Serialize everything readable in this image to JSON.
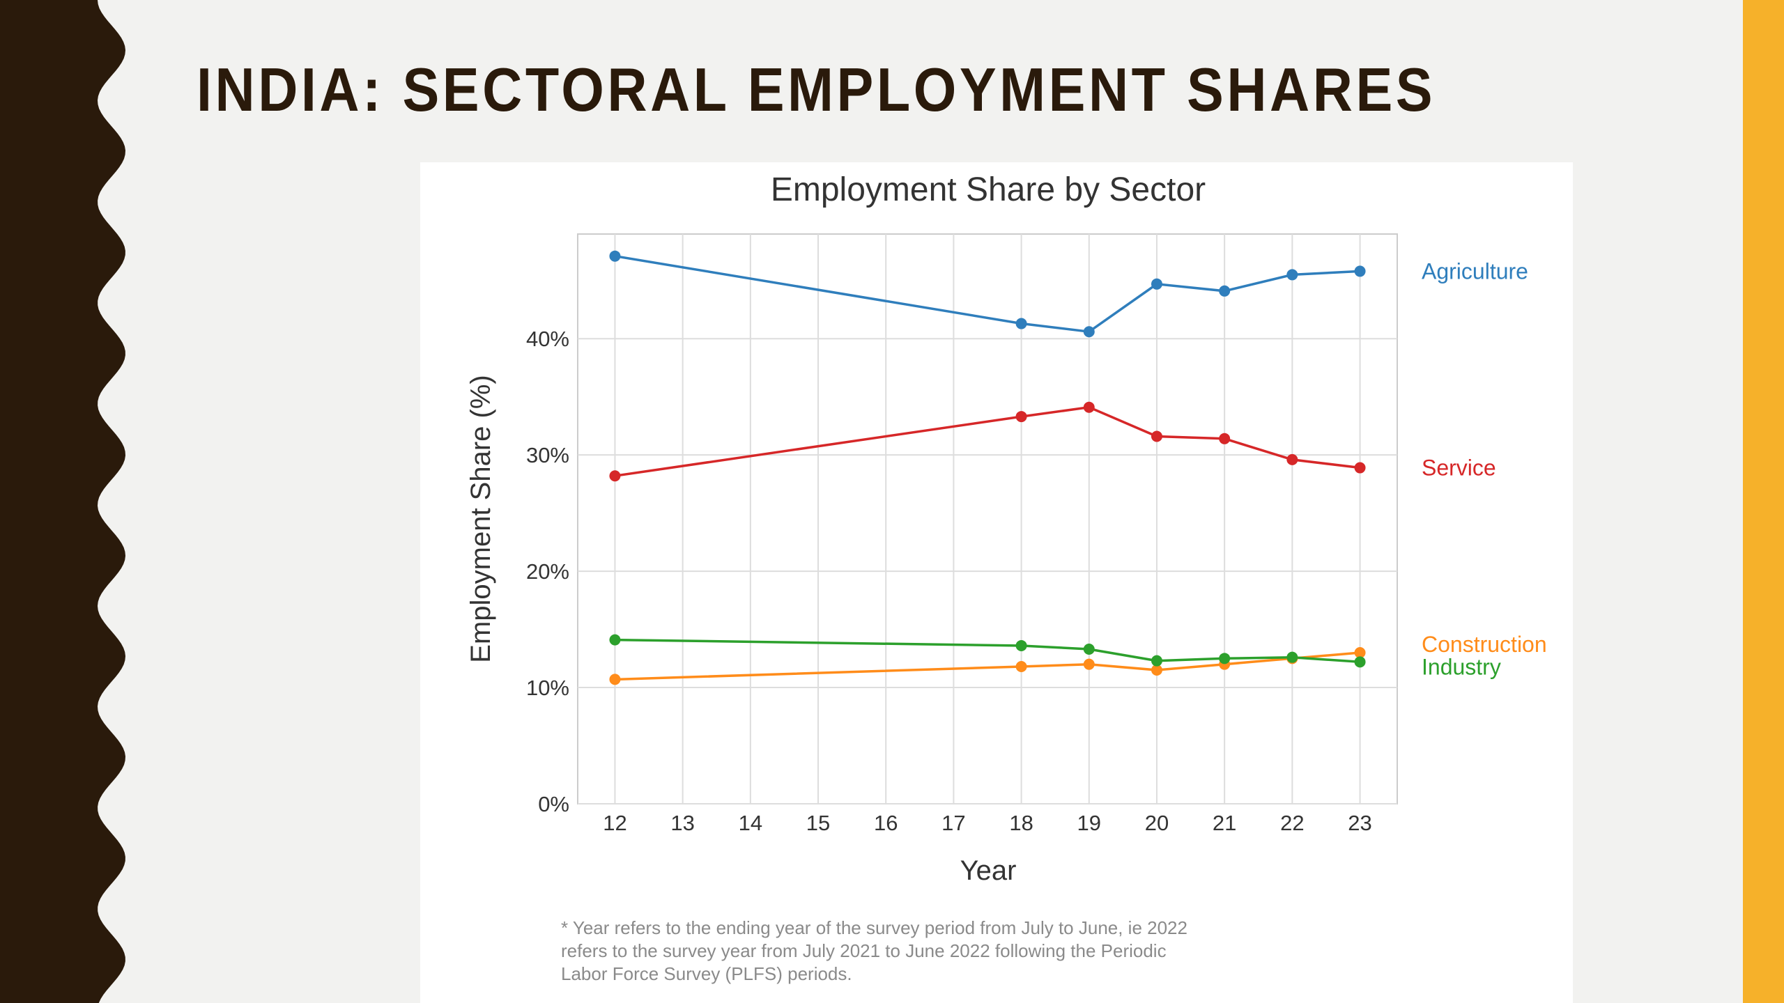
{
  "slide": {
    "title": "INDIA: SECTORAL EMPLOYMENT SHARES",
    "accent_color": "#f6b12a",
    "wave_color": "#2a1a0b"
  },
  "footnote": [
    "* Year refers to the ending year of the survey period from July to June, ie 2022",
    "refers to the survey year from July 2021 to June 2022 following the Periodic",
    "Labor Force Survey (PLFS) periods."
  ],
  "chart_data": {
    "type": "line",
    "title": "Employment Share by Sector",
    "xlabel": "Year",
    "ylabel": "Employment Share (%)",
    "x_ticks": [
      "12",
      "13",
      "14",
      "15",
      "16",
      "17",
      "18",
      "19",
      "20",
      "21",
      "22",
      "23"
    ],
    "y_ticks": [
      "0%",
      "10%",
      "20%",
      "30%",
      "40%"
    ],
    "xlim": [
      11.45,
      23.55
    ],
    "ylim": [
      0,
      49
    ],
    "grid": true,
    "legend": "labels at right end of each line",
    "x": [
      12,
      18,
      19,
      20,
      21,
      22,
      23
    ],
    "series": [
      {
        "name": "Agriculture",
        "color": "#2f7ebc",
        "values": [
          47.1,
          41.3,
          40.6,
          44.7,
          44.1,
          45.5,
          45.8
        ]
      },
      {
        "name": "Service",
        "color": "#d62728",
        "values": [
          28.2,
          33.3,
          34.1,
          31.6,
          31.4,
          29.6,
          28.9
        ]
      },
      {
        "name": "Construction",
        "color": "#ff8c1a",
        "values": [
          10.7,
          11.8,
          12.0,
          11.5,
          12.0,
          12.5,
          13.0
        ]
      },
      {
        "name": "Industry",
        "color": "#2ca02c",
        "values": [
          14.1,
          13.6,
          13.3,
          12.3,
          12.5,
          12.6,
          12.2
        ]
      }
    ]
  }
}
